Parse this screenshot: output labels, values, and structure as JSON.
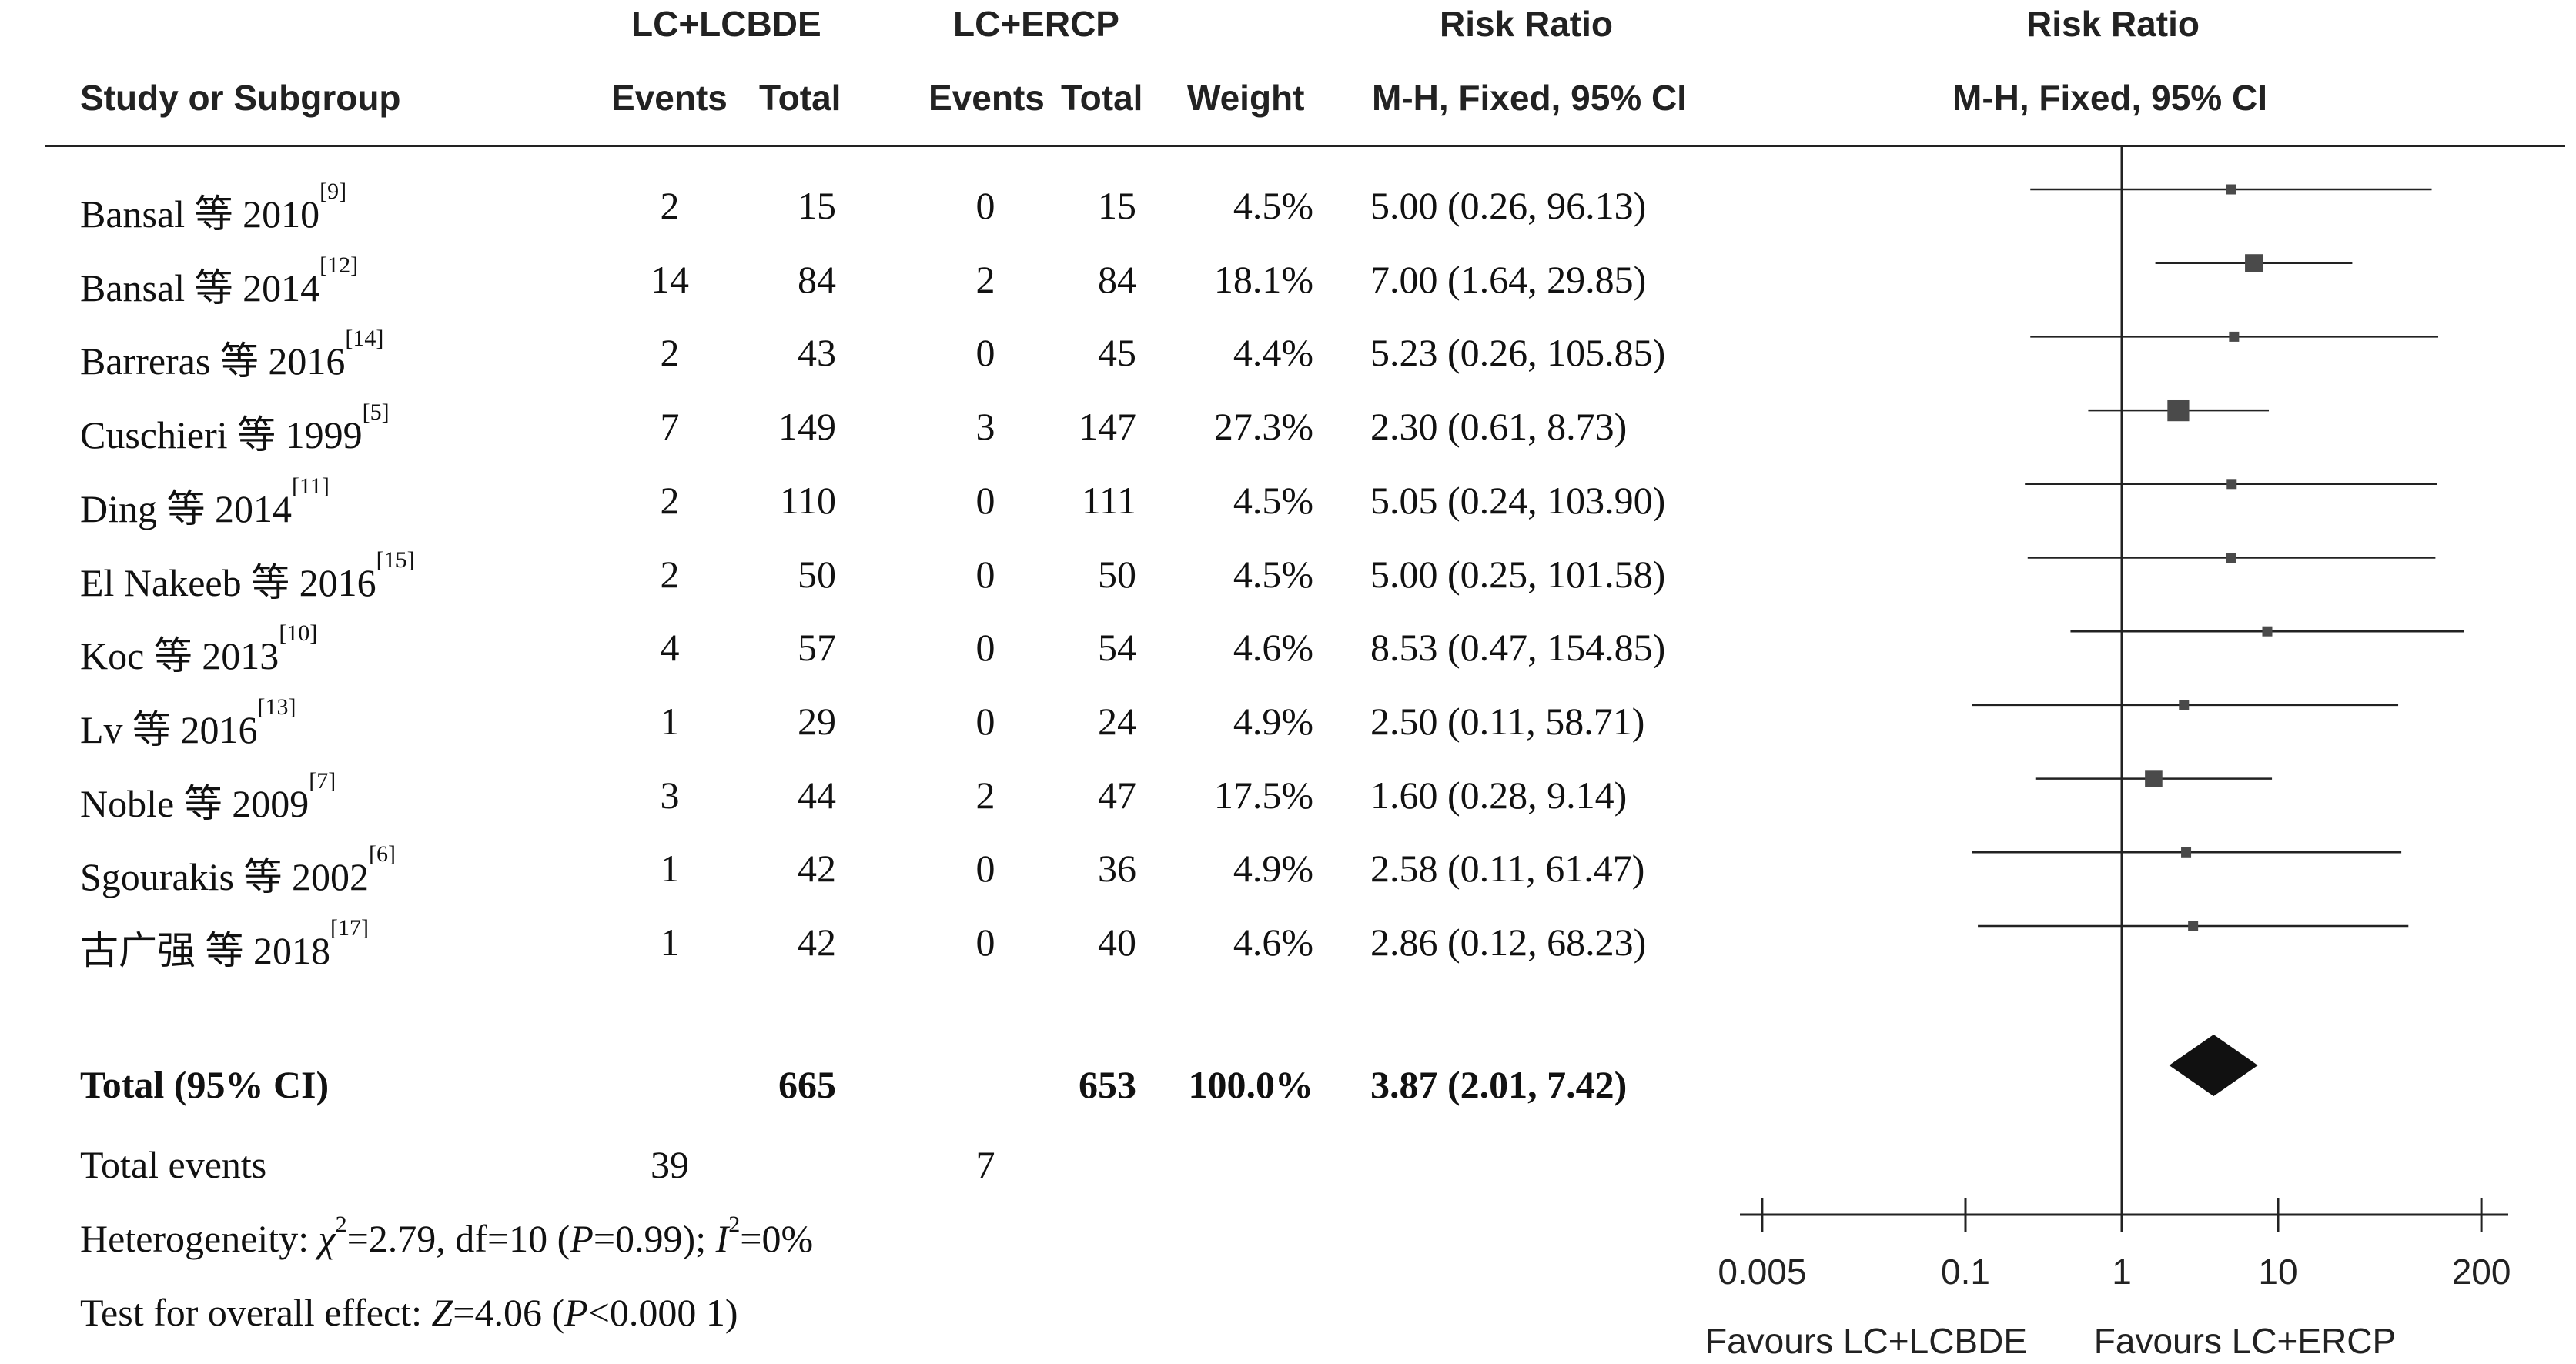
{
  "headers": {
    "group1": "LC+LCBDE",
    "group2": "LC+ERCP",
    "study": "Study or Subgroup",
    "events1": "Events",
    "total1": "Total",
    "events2": "Events",
    "total2": "Total",
    "weight": "Weight",
    "rr_title": "Risk Ratio",
    "rr_method": "M-H, Fixed, 95% CI",
    "plot_title": "Risk Ratio",
    "plot_method": "M-H, Fixed, 95% CI"
  },
  "studies": [
    {
      "name": "Bansal 等 2010",
      "ref": "[9]",
      "e1": "2",
      "t1": "15",
      "e2": "0",
      "t2": "15",
      "weight": "4.5%",
      "ci": "5.00 (0.26, 96.13)"
    },
    {
      "name": "Bansal 等 2014",
      "ref": "[12]",
      "e1": "14",
      "t1": "84",
      "e2": "2",
      "t2": "84",
      "weight": "18.1%",
      "ci": "7.00 (1.64, 29.85)"
    },
    {
      "name": "Barreras 等 2016",
      "ref": "[14]",
      "e1": "2",
      "t1": "43",
      "e2": "0",
      "t2": "45",
      "weight": "4.4%",
      "ci": "5.23 (0.26, 105.85)"
    },
    {
      "name": "Cuschieri 等 1999",
      "ref": "[5]",
      "e1": "7",
      "t1": "149",
      "e2": "3",
      "t2": "147",
      "weight": "27.3%",
      "ci": "2.30 (0.61, 8.73)"
    },
    {
      "name": "Ding 等 2014",
      "ref": "[11]",
      "e1": "2",
      "t1": "110",
      "e2": "0",
      "t2": "111",
      "weight": "4.5%",
      "ci": "5.05 (0.24, 103.90)"
    },
    {
      "name": "El Nakeeb 等 2016",
      "ref": "[15]",
      "e1": "2",
      "t1": "50",
      "e2": "0",
      "t2": "50",
      "weight": "4.5%",
      "ci": "5.00 (0.25, 101.58)"
    },
    {
      "name": "Koc 等 2013",
      "ref": "[10]",
      "e1": "4",
      "t1": "57",
      "e2": "0",
      "t2": "54",
      "weight": "4.6%",
      "ci": "8.53 (0.47, 154.85)"
    },
    {
      "name": "Lv 等 2016",
      "ref": "[13]",
      "e1": "1",
      "t1": "29",
      "e2": "0",
      "t2": "24",
      "weight": "4.9%",
      "ci": "2.50 (0.11, 58.71)"
    },
    {
      "name": "Noble 等 2009",
      "ref": "[7]",
      "e1": "3",
      "t1": "44",
      "e2": "2",
      "t2": "47",
      "weight": "17.5%",
      "ci": "1.60 (0.28, 9.14)"
    },
    {
      "name": "Sgourakis 等 2002",
      "ref": "[6]",
      "e1": "1",
      "t1": "42",
      "e2": "0",
      "t2": "36",
      "weight": "4.9%",
      "ci": "2.58 (0.11, 61.47)"
    },
    {
      "name": "古广强 等 2018",
      "ref": "[17]",
      "e1": "1",
      "t1": "42",
      "e2": "0",
      "t2": "40",
      "weight": "4.6%",
      "ci": "2.86 (0.12, 68.23)"
    }
  ],
  "total": {
    "label": "Total (95% CI)",
    "t1": "665",
    "t2": "653",
    "weight": "100.0%",
    "ci": "3.87 (2.01, 7.42)"
  },
  "total_events": {
    "label": "Total events",
    "e1": "39",
    "e2": "7"
  },
  "heterogeneity": {
    "prefix": "Heterogeneity: ",
    "chi_sym": "χ",
    "chi_val": "=2.79, df=10 (",
    "p_sym": "P",
    "p_val": "=0.99); ",
    "i_sym": "I",
    "i_val": "=0%"
  },
  "overall_effect": {
    "prefix": "Test for overall effect: ",
    "z_sym": "Z",
    "z_val": "=4.06 (",
    "p_sym": "P",
    "p_val": "<0.000 1)"
  },
  "axis": {
    "ticks": [
      "0.005",
      "0.1",
      "1",
      "10",
      "200"
    ],
    "favours_left": "Favours LC+LCBDE",
    "favours_right": "Favours LC+ERCP"
  },
  "colors": {
    "marker": "#4a4a4a",
    "line": "#222222",
    "diamond": "#111111"
  },
  "chart_data": {
    "type": "forest",
    "scale": "log",
    "xlim": [
      0.005,
      200
    ],
    "ticks": [
      0.005,
      0.1,
      1,
      10,
      200
    ],
    "reference_line": 1,
    "points": [
      {
        "rr": 5.0,
        "lo": 0.26,
        "hi": 96.13,
        "weight": 4.5
      },
      {
        "rr": 7.0,
        "lo": 1.64,
        "hi": 29.85,
        "weight": 18.1
      },
      {
        "rr": 5.23,
        "lo": 0.26,
        "hi": 105.85,
        "weight": 4.4
      },
      {
        "rr": 2.3,
        "lo": 0.61,
        "hi": 8.73,
        "weight": 27.3
      },
      {
        "rr": 5.05,
        "lo": 0.24,
        "hi": 103.9,
        "weight": 4.5
      },
      {
        "rr": 5.0,
        "lo": 0.25,
        "hi": 101.58,
        "weight": 4.5
      },
      {
        "rr": 8.53,
        "lo": 0.47,
        "hi": 154.85,
        "weight": 4.6
      },
      {
        "rr": 2.5,
        "lo": 0.11,
        "hi": 58.71,
        "weight": 4.9
      },
      {
        "rr": 1.6,
        "lo": 0.28,
        "hi": 9.14,
        "weight": 17.5
      },
      {
        "rr": 2.58,
        "lo": 0.11,
        "hi": 61.47,
        "weight": 4.9
      },
      {
        "rr": 2.86,
        "lo": 0.12,
        "hi": 68.23,
        "weight": 4.6
      }
    ],
    "pooled": {
      "rr": 3.87,
      "lo": 2.01,
      "hi": 7.42
    }
  }
}
